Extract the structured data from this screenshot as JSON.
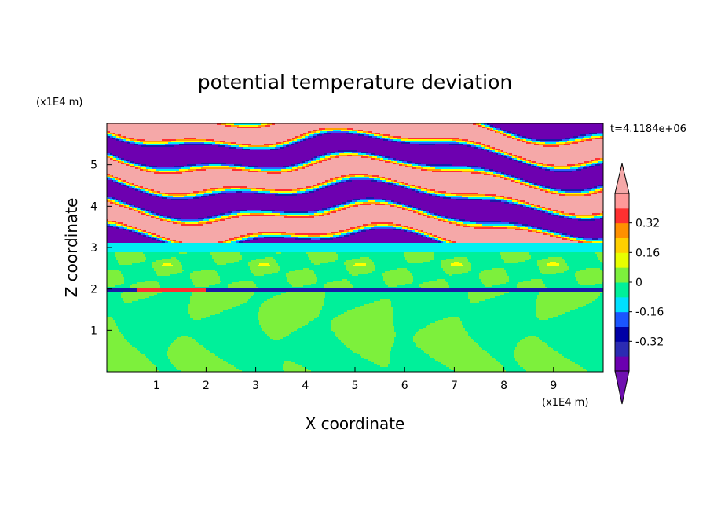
{
  "chart_data": {
    "type": "heatmap",
    "title": "potential temperature deviation",
    "xlabel": "X coordinate",
    "ylabel": "Z coordinate",
    "x_unit": "(x1E4 m)",
    "y_unit": "(x1E4 m)",
    "time_label": "t=4.1184e+06",
    "xlim": [
      0,
      10
    ],
    "ylim": [
      0,
      6
    ],
    "x_ticks": [
      "1",
      "2",
      "3",
      "4",
      "5",
      "6",
      "7",
      "8",
      "9"
    ],
    "y_ticks": [
      "1",
      "2",
      "3",
      "4",
      "5"
    ],
    "colorbar": {
      "levels": [
        -0.48,
        -0.4,
        -0.32,
        -0.24,
        -0.16,
        -0.08,
        0,
        0.08,
        0.16,
        0.24,
        0.32,
        0.4,
        0.48
      ],
      "tick_labels": [
        "-0.32",
        "-0.16",
        "0",
        "0.16",
        "0.32"
      ],
      "tick_values": [
        -0.32,
        -0.16,
        0,
        0.16,
        0.32
      ],
      "colors": [
        "#6b00b0",
        "#2b2bb3",
        "#0000a6",
        "#1a55ff",
        "#00e0ff",
        "#00f09a",
        "#7df03c",
        "#e8ff00",
        "#ffd000",
        "#ff9000",
        "#ff3030",
        "#ff9999",
        "#ffb0b0"
      ],
      "under_color": "#7010b0",
      "over_color": "#f5a8a8"
    }
  }
}
